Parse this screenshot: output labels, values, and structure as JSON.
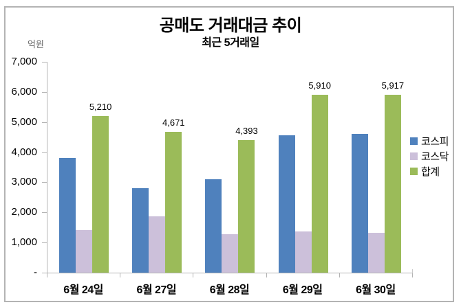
{
  "title": "공매도 거래대금 추이",
  "subtitle": "최근 5거래일",
  "unit_label": "억원",
  "colors": {
    "kospi": "#4F81BD",
    "kosdaq": "#CCC0DA",
    "total": "#9BBB59",
    "axis": "#b3b3b3"
  },
  "chart_data": {
    "type": "bar",
    "title": "공매도 거래대금 추이",
    "subtitle": "최근 5거래일",
    "ylabel": "억원",
    "categories": [
      "6월 24일",
      "6월 27일",
      "6월 28일",
      "6월 29일",
      "6월 30일"
    ],
    "series": [
      {
        "key": "kospi",
        "name": "코스피",
        "color": "#4F81BD",
        "values": [
          3800,
          2800,
          3110,
          4550,
          4600
        ]
      },
      {
        "key": "kosdaq",
        "name": "코스닥",
        "color": "#CCC0DA",
        "values": [
          1410,
          1871,
          1283,
          1360,
          1317
        ]
      },
      {
        "key": "total",
        "name": "합계",
        "color": "#9BBB59",
        "values": [
          5210,
          4671,
          4393,
          5910,
          5917
        ],
        "data_labels": [
          "5,210",
          "4,671",
          "4,393",
          "5,910",
          "5,917"
        ]
      }
    ],
    "ylim": [
      0,
      7000
    ],
    "ytick_step": 1000,
    "yticks": [
      {
        "value": 7000,
        "label": "7,000"
      },
      {
        "value": 6000,
        "label": "6,000"
      },
      {
        "value": 5000,
        "label": "5,000"
      },
      {
        "value": 4000,
        "label": "4,000"
      },
      {
        "value": 3000,
        "label": "3,000"
      },
      {
        "value": 2000,
        "label": "2,000"
      },
      {
        "value": 1000,
        "label": "1,000"
      },
      {
        "value": 0,
        "label": "-"
      }
    ],
    "grid": false,
    "legend_position": "right",
    "data_labels_on": "합계"
  }
}
